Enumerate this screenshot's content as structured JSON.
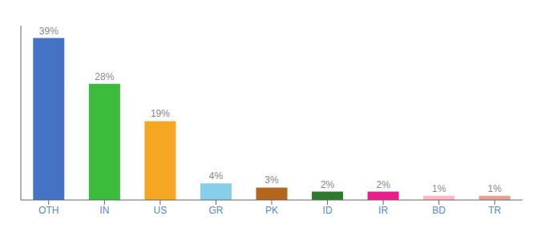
{
  "chart_data": {
    "type": "bar",
    "categories": [
      "OTH",
      "IN",
      "US",
      "GR",
      "PK",
      "ID",
      "IR",
      "BD",
      "TR"
    ],
    "values": [
      39,
      28,
      19,
      4,
      3,
      2,
      2,
      1,
      1
    ],
    "value_labels": [
      "39%",
      "28%",
      "19%",
      "4%",
      "3%",
      "2%",
      "2%",
      "1%",
      "1%"
    ],
    "colors": [
      "#4472c4",
      "#3dbb3d",
      "#f5a623",
      "#87ceeb",
      "#b5651d",
      "#2d7a2d",
      "#e91e8c",
      "#ffb6c1",
      "#e8a090"
    ],
    "ylim": [
      0,
      42
    ],
    "grid": false,
    "data_labels": true,
    "tick_labels": "x"
  }
}
